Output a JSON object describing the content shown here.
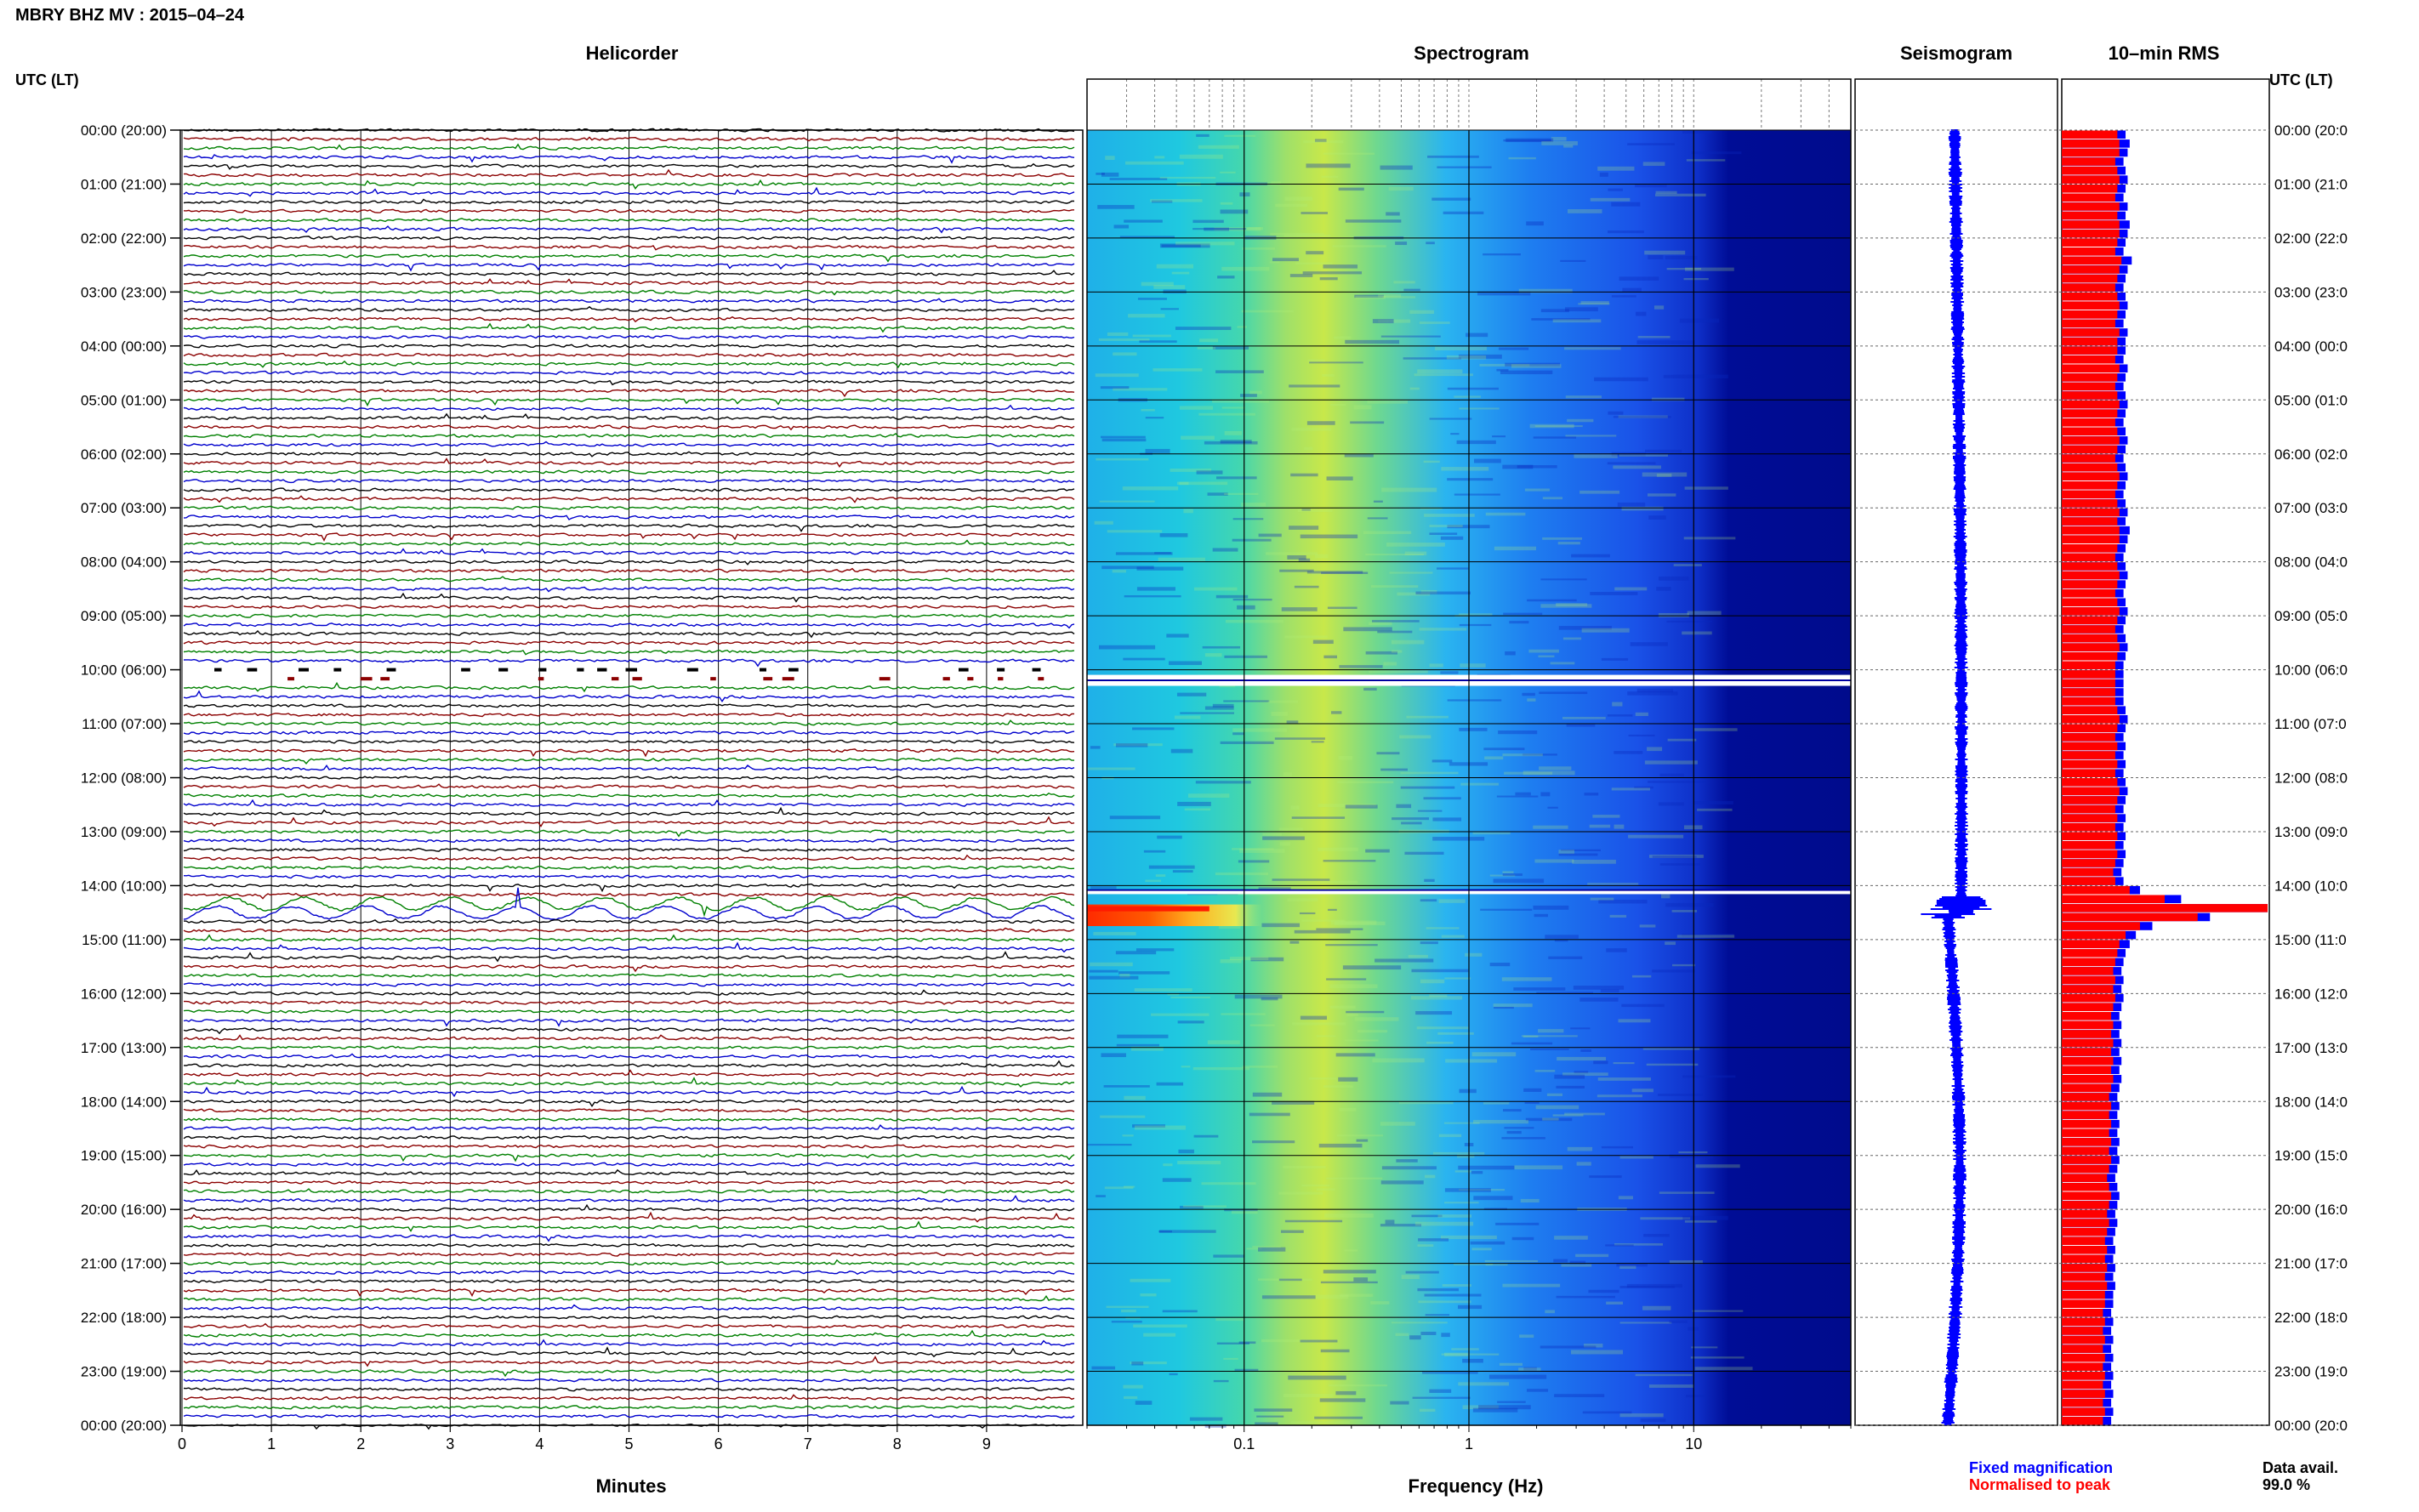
{
  "header": {
    "station_title": "MBRY BHZ MV : 2015–04–24",
    "time_axis_label": "UTC (LT)"
  },
  "panels": {
    "helicorder": "Helicorder",
    "spectrogram": "Spectrogram",
    "seismogram": "Seismogram",
    "rms": "10–min RMS"
  },
  "hour_labels": [
    "00:00 (20:00)",
    "01:00 (21:00)",
    "02:00 (22:00)",
    "03:00 (23:00)",
    "04:00 (00:00)",
    "05:00 (01:00)",
    "06:00 (02:00)",
    "07:00 (03:00)",
    "08:00 (04:00)",
    "09:00 (05:00)",
    "10:00 (06:00)",
    "11:00 (07:00)",
    "12:00 (08:00)",
    "13:00 (09:00)",
    "14:00 (10:00)",
    "15:00 (11:00)",
    "16:00 (12:00)",
    "17:00 (13:00)",
    "18:00 (14:00)",
    "19:00 (15:00)",
    "20:00 (16:00)",
    "21:00 (17:00)",
    "22:00 (18:00)",
    "23:00 (19:00)",
    "00:00 (20:00)"
  ],
  "right_hour_labels": [
    "00:00 (20:0",
    "01:00 (21:0",
    "02:00 (22:0",
    "03:00 (23:0",
    "04:00 (00:0",
    "05:00 (01:0",
    "06:00 (02:0",
    "07:00 (03:0",
    "08:00 (04:0",
    "09:00 (05:0",
    "10:00 (06:0",
    "11:00 (07:0",
    "12:00 (08:0",
    "13:00 (09:0",
    "14:00 (10:0",
    "15:00 (11:0",
    "16:00 (12:0",
    "17:00 (13:0",
    "18:00 (14:0",
    "19:00 (15:0",
    "20:00 (16:0",
    "21:00 (17:0",
    "22:00 (18:0",
    "23:00 (19:0",
    "00:00 (20:0"
  ],
  "footer": {
    "minutes_label": "Minutes",
    "frequency_label": "Frequency (Hz)",
    "legend_fixed": "Fixed magnification",
    "legend_normalised": "Normalised to peak",
    "data_avail_label": "Data avail.",
    "data_avail_value": "99.0 %"
  },
  "colors": {
    "helicorder_traces": [
      "#000000",
      "#8b0000",
      "#008000",
      "#0000cd"
    ],
    "fixed_magnification": "#0000ff",
    "normalised_to_peak": "#ff0000"
  },
  "chart_data": [
    {
      "type": "line",
      "name": "helicorder",
      "title": "Helicorder",
      "xlabel": "Minutes",
      "x_ticks": [
        0,
        1,
        2,
        3,
        4,
        5,
        6,
        7,
        8,
        9
      ],
      "xlim": [
        0,
        10
      ],
      "lines_per_hour": 6,
      "hours": 24,
      "data_gap_utc_hours": [
        10.0,
        10.33
      ],
      "high_amplitude_utc_hours": [
        14.17,
        14.5
      ]
    },
    {
      "type": "heatmap",
      "name": "spectrogram",
      "title": "Spectrogram",
      "xlabel": "Frequency (Hz)",
      "x_scale": "log",
      "x_ticks": [
        0.1,
        1,
        10
      ],
      "xlim": [
        0.02,
        50
      ],
      "data_gaps_utc_hours": [
        [
          10.0,
          10.33
        ],
        [
          14.0,
          14.1
        ]
      ],
      "strong_low_freq_energy_utc_hours": [
        14.35,
        14.75
      ]
    },
    {
      "type": "line",
      "name": "seismogram",
      "title": "Seismogram",
      "burst_utc_hours": [
        14.2,
        14.6
      ]
    },
    {
      "type": "bar",
      "name": "rms",
      "title": "10–min RMS",
      "series": [
        {
          "name": "Fixed magnification",
          "color": "#0000ff",
          "values": [
            0.31,
            0.33,
            0.32,
            0.3,
            0.31,
            0.32,
            0.31,
            0.3,
            0.32,
            0.31,
            0.33,
            0.32,
            0.31,
            0.3,
            0.34,
            0.32,
            0.31,
            0.3,
            0.31,
            0.32,
            0.31,
            0.3,
            0.32,
            0.31,
            0.31,
            0.3,
            0.32,
            0.31,
            0.3,
            0.31,
            0.32,
            0.31,
            0.3,
            0.31,
            0.32,
            0.31,
            0.3,
            0.31,
            0.32,
            0.31,
            0.3,
            0.31,
            0.32,
            0.31,
            0.33,
            0.32,
            0.31,
            0.3,
            0.31,
            0.32,
            0.31,
            0.3,
            0.31,
            0.32,
            0.31,
            0.3,
            0.31,
            0.32,
            0.31,
            0.3,
            0.3,
            0.3,
            0.3,
            0.3,
            0.31,
            0.32,
            0.31,
            0.3,
            0.31,
            0.3,
            0.31,
            0.3,
            0.31,
            0.32,
            0.31,
            0.3,
            0.31,
            0.3,
            0.31,
            0.3,
            0.31,
            0.3,
            0.29,
            0.3,
            0.38,
            0.58,
            1.0,
            0.72,
            0.44,
            0.36,
            0.33,
            0.31,
            0.3,
            0.29,
            0.3,
            0.29,
            0.3,
            0.29,
            0.28,
            0.29,
            0.28,
            0.29,
            0.28,
            0.29,
            0.28,
            0.29,
            0.28,
            0.27,
            0.28,
            0.27,
            0.28,
            0.27,
            0.28,
            0.27,
            0.28,
            0.27,
            0.26,
            0.27,
            0.28,
            0.27,
            0.26,
            0.27,
            0.26,
            0.25,
            0.26,
            0.25,
            0.26,
            0.25,
            0.26,
            0.25,
            0.25,
            0.24,
            0.25,
            0.24,
            0.25,
            0.24,
            0.25,
            0.24,
            0.25,
            0.24,
            0.25,
            0.24,
            0.25,
            0.24
          ]
        },
        {
          "name": "Normalised to peak",
          "color": "#ff0000",
          "values": [
            0.27,
            0.28,
            0.28,
            0.26,
            0.27,
            0.28,
            0.27,
            0.26,
            0.28,
            0.27,
            0.28,
            0.28,
            0.27,
            0.26,
            0.29,
            0.28,
            0.27,
            0.26,
            0.27,
            0.28,
            0.27,
            0.26,
            0.28,
            0.27,
            0.27,
            0.26,
            0.28,
            0.27,
            0.26,
            0.27,
            0.28,
            0.27,
            0.26,
            0.27,
            0.28,
            0.27,
            0.26,
            0.27,
            0.28,
            0.27,
            0.26,
            0.27,
            0.28,
            0.27,
            0.28,
            0.28,
            0.27,
            0.26,
            0.27,
            0.28,
            0.27,
            0.26,
            0.27,
            0.28,
            0.27,
            0.26,
            0.27,
            0.28,
            0.27,
            0.26,
            0.26,
            0.26,
            0.26,
            0.26,
            0.27,
            0.28,
            0.27,
            0.26,
            0.27,
            0.26,
            0.27,
            0.26,
            0.27,
            0.28,
            0.27,
            0.26,
            0.27,
            0.26,
            0.27,
            0.26,
            0.27,
            0.26,
            0.25,
            0.26,
            0.33,
            0.5,
            1.0,
            0.66,
            0.38,
            0.31,
            0.28,
            0.27,
            0.26,
            0.25,
            0.26,
            0.25,
            0.26,
            0.25,
            0.24,
            0.25,
            0.24,
            0.25,
            0.24,
            0.25,
            0.24,
            0.25,
            0.24,
            0.23,
            0.24,
            0.23,
            0.24,
            0.23,
            0.24,
            0.23,
            0.24,
            0.23,
            0.22,
            0.23,
            0.24,
            0.23,
            0.22,
            0.23,
            0.22,
            0.21,
            0.22,
            0.21,
            0.22,
            0.21,
            0.22,
            0.21,
            0.21,
            0.2,
            0.21,
            0.2,
            0.21,
            0.2,
            0.21,
            0.2,
            0.21,
            0.2,
            0.21,
            0.2,
            0.21,
            0.2
          ]
        }
      ]
    }
  ]
}
